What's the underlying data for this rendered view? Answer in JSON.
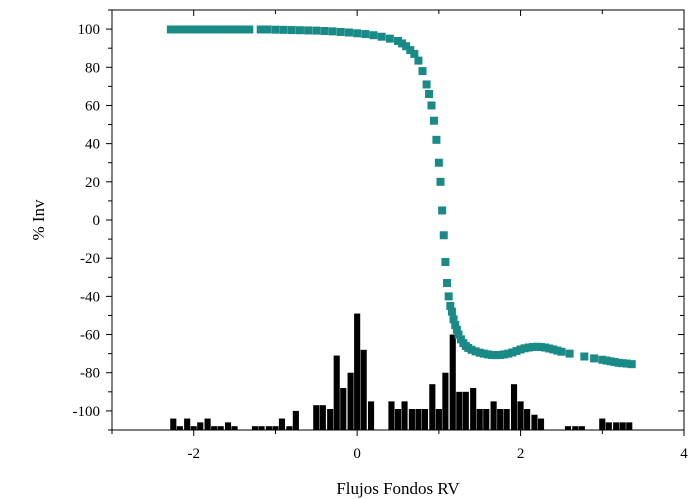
{
  "chart_data": {
    "type": "scatter",
    "title": "",
    "xlabel": "Flujos Fondos RV",
    "ylabel": "% Inv",
    "xlim": [
      -3,
      4
    ],
    "ylim": [
      -110,
      110
    ],
    "x_ticks": [
      "-2",
      "0",
      "2",
      "4"
    ],
    "y_ticks": [
      "100",
      "80",
      "60",
      "40",
      "20",
      "0",
      "-20",
      "-40",
      "-60",
      "-80",
      "-100"
    ],
    "x_tick_values": [
      -2,
      0,
      2,
      4
    ],
    "y_tick_values": [
      100,
      80,
      60,
      40,
      20,
      0,
      -20,
      -40,
      -60,
      -80,
      -100
    ],
    "grid": false,
    "legend": "none",
    "marker_color": "#1a8a87",
    "bar_color": "#000000",
    "series": [
      {
        "kind": "scatter",
        "x": [
          -2.28,
          -2.2,
          -2.12,
          -2.04,
          -1.96,
          -1.88,
          -1.8,
          -1.72,
          -1.64,
          -1.56,
          -1.48,
          -1.4,
          -1.32,
          -1.18,
          -1.1,
          -1.0,
          -0.9,
          -0.8,
          -0.7,
          -0.6,
          -0.5,
          -0.4,
          -0.3,
          -0.2,
          -0.1,
          0.0,
          0.1,
          0.2,
          0.3,
          0.4,
          0.5,
          0.55,
          0.6,
          0.65,
          0.7,
          0.75,
          0.8,
          0.85,
          0.88,
          0.91,
          0.94,
          0.97,
          1.0,
          1.02,
          1.04,
          1.06,
          1.08,
          1.1,
          1.12,
          1.14,
          1.16,
          1.18,
          1.2,
          1.22,
          1.24,
          1.27,
          1.3,
          1.33,
          1.36,
          1.4,
          1.45,
          1.5,
          1.55,
          1.6,
          1.65,
          1.7,
          1.75,
          1.8,
          1.85,
          1.9,
          1.95,
          2.0,
          2.05,
          2.1,
          2.15,
          2.2,
          2.25,
          2.3,
          2.35,
          2.4,
          2.45,
          2.5,
          2.6,
          2.78,
          2.9,
          3.0,
          3.05,
          3.1,
          3.15,
          3.2,
          3.25,
          3.3,
          3.36
        ],
        "y": [
          99.8,
          99.8,
          99.8,
          99.8,
          99.8,
          99.8,
          99.8,
          99.8,
          99.8,
          99.8,
          99.8,
          99.8,
          99.8,
          99.8,
          99.8,
          99.7,
          99.6,
          99.5,
          99.4,
          99.3,
          99.2,
          99.0,
          98.8,
          98.5,
          98.2,
          97.8,
          97.4,
          96.8,
          96.0,
          95.0,
          93.8,
          92.5,
          91.0,
          89.0,
          87.0,
          83.5,
          78.0,
          71.0,
          66.0,
          60.0,
          52.0,
          42.0,
          30.0,
          20.0,
          5.0,
          -8.0,
          -22.0,
          -33.0,
          -40.0,
          -45.0,
          -48.0,
          -52.0,
          -55.0,
          -57.5,
          -60.0,
          -62.5,
          -64.5,
          -66.0,
          -67.0,
          -68.0,
          -68.8,
          -69.5,
          -70.0,
          -70.4,
          -70.7,
          -70.8,
          -70.7,
          -70.4,
          -70.0,
          -69.4,
          -68.6,
          -67.8,
          -67.2,
          -66.8,
          -66.5,
          -66.4,
          -66.5,
          -66.8,
          -67.3,
          -67.8,
          -68.4,
          -69.0,
          -70.0,
          -71.5,
          -72.5,
          -73.2,
          -73.6,
          -74.0,
          -74.4,
          -74.8,
          -75.0,
          -75.2,
          -75.5
        ]
      },
      {
        "kind": "bar",
        "bar_width": 0.075,
        "x": [
          -2.25,
          -2.17,
          -2.08,
          -2.0,
          -1.92,
          -1.83,
          -1.75,
          -1.67,
          -1.58,
          -1.5,
          -1.42,
          -1.33,
          -1.25,
          -1.17,
          -1.08,
          -1.0,
          -0.92,
          -0.83,
          -0.75,
          -0.67,
          -0.58,
          -0.5,
          -0.42,
          -0.33,
          -0.25,
          -0.17,
          -0.08,
          0.0,
          0.08,
          0.17,
          0.25,
          0.33,
          0.42,
          0.5,
          0.58,
          0.67,
          0.75,
          0.83,
          0.92,
          1.0,
          1.08,
          1.17,
          1.25,
          1.33,
          1.42,
          1.5,
          1.58,
          1.67,
          1.75,
          1.83,
          1.92,
          2.0,
          2.08,
          2.17,
          2.25,
          2.33,
          2.42,
          2.5,
          2.58,
          2.67,
          2.75,
          2.83,
          2.92,
          3.0,
          3.08,
          3.17,
          3.25,
          3.33
        ],
        "y": [
          -104,
          -108,
          -104,
          -108,
          -106,
          -104,
          -108,
          -108,
          -106,
          -108,
          -110,
          -110,
          -108,
          -108,
          -108,
          -108,
          -104,
          -108,
          -100,
          -110,
          -110,
          -97,
          -97,
          -99,
          -71,
          -88,
          -80,
          -49,
          -68,
          -95,
          -110,
          -110,
          -95,
          -99,
          -95,
          -99,
          -99,
          -99,
          -86,
          -99,
          -80,
          -60,
          -90,
          -90,
          -88,
          -99,
          -99,
          -95,
          -99,
          -99,
          -86,
          -95,
          -99,
          -102,
          -104,
          -110,
          -110,
          -110,
          -108,
          -108,
          -108,
          -110,
          -110,
          -104,
          -106,
          -106,
          -106,
          -106
        ]
      }
    ]
  }
}
